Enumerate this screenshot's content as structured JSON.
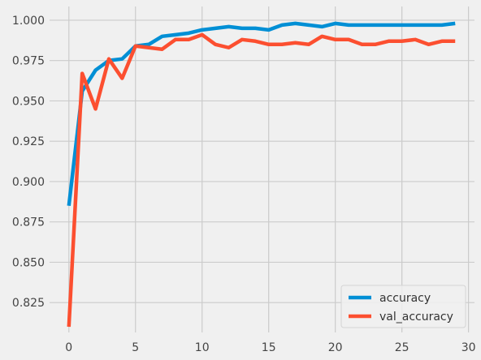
{
  "chart_data": {
    "type": "line",
    "title": "",
    "xlabel": "",
    "ylabel": "",
    "x": [
      0,
      1,
      2,
      3,
      4,
      5,
      6,
      7,
      8,
      9,
      10,
      11,
      12,
      13,
      14,
      15,
      16,
      17,
      18,
      19,
      20,
      21,
      22,
      23,
      24,
      25,
      26,
      27,
      28,
      29
    ],
    "xlim": [
      -1.45,
      30.45
    ],
    "ylim": [
      0.8065,
      1.0085
    ],
    "xticks": [
      0,
      5,
      10,
      15,
      20,
      25,
      30
    ],
    "xtick_labels": [
      "0",
      "5",
      "10",
      "15",
      "20",
      "25",
      "30"
    ],
    "yticks": [
      0.825,
      0.85,
      0.875,
      0.9,
      0.925,
      0.95,
      0.975,
      1.0
    ],
    "ytick_labels": [
      "0.825",
      "0.850",
      "0.875",
      "0.900",
      "0.925",
      "0.950",
      "0.975",
      "1.000"
    ],
    "grid": true,
    "legend_position": "lower-right",
    "series": [
      {
        "name": "accuracy",
        "color": "#008fd5",
        "values": [
          0.885,
          0.956,
          0.969,
          0.975,
          0.976,
          0.984,
          0.985,
          0.99,
          0.991,
          0.992,
          0.994,
          0.995,
          0.996,
          0.995,
          0.995,
          0.994,
          0.997,
          0.998,
          0.997,
          0.996,
          0.998,
          0.997,
          0.997,
          0.997,
          0.997,
          0.997,
          0.997,
          0.997,
          0.997,
          0.998
        ]
      },
      {
        "name": "val_accuracy",
        "color": "#fc4f30",
        "values": [
          0.81,
          0.967,
          0.945,
          0.976,
          0.964,
          0.984,
          0.983,
          0.982,
          0.988,
          0.988,
          0.991,
          0.985,
          0.983,
          0.988,
          0.987,
          0.985,
          0.985,
          0.986,
          0.985,
          0.99,
          0.988,
          0.988,
          0.985,
          0.985,
          0.987,
          0.987,
          0.988,
          0.985,
          0.987,
          0.987
        ]
      }
    ]
  }
}
